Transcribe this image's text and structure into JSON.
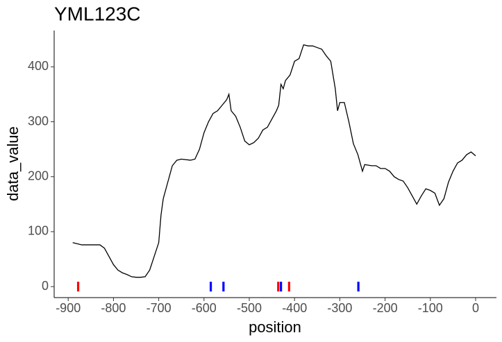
{
  "chart_data": {
    "type": "line",
    "title": "YML123C",
    "x_label": "position",
    "y_label": "data_value",
    "color": "#000000",
    "x": [
      -890,
      -870,
      -850,
      -830,
      -820,
      -810,
      -800,
      -790,
      -780,
      -770,
      -760,
      -750,
      -740,
      -730,
      -720,
      -710,
      -700,
      -695,
      -690,
      -680,
      -670,
      -660,
      -650,
      -630,
      -620,
      -610,
      -600,
      -590,
      -580,
      -570,
      -560,
      -550,
      -545,
      -540,
      -530,
      -520,
      -510,
      -500,
      -490,
      -480,
      -470,
      -460,
      -450,
      -440,
      -435,
      -430,
      -425,
      -420,
      -410,
      -400,
      -390,
      -380,
      -370,
      -360,
      -350,
      -340,
      -330,
      -320,
      -310,
      -305,
      -300,
      -290,
      -280,
      -270,
      -260,
      -250,
      -245,
      -230,
      -220,
      -210,
      -200,
      -190,
      -180,
      -170,
      -160,
      -150,
      -140,
      -130,
      -120,
      -110,
      -100,
      -90,
      -80,
      -70,
      -60,
      -50,
      -40,
      -30,
      -20,
      -10,
      0
    ],
    "values": [
      80,
      76,
      76,
      76,
      70,
      55,
      40,
      30,
      25,
      22,
      18,
      17,
      17,
      18,
      30,
      55,
      80,
      130,
      160,
      190,
      220,
      230,
      232,
      230,
      232,
      250,
      280,
      300,
      315,
      320,
      330,
      340,
      350,
      320,
      310,
      290,
      265,
      258,
      262,
      270,
      285,
      290,
      305,
      320,
      330,
      368,
      360,
      375,
      385,
      410,
      415,
      440,
      438,
      438,
      435,
      432,
      420,
      410,
      360,
      320,
      335,
      335,
      300,
      260,
      240,
      210,
      222,
      220,
      220,
      215,
      215,
      210,
      200,
      195,
      192,
      180,
      165,
      150,
      165,
      178,
      175,
      170,
      148,
      160,
      190,
      210,
      225,
      230,
      240,
      245,
      238
    ],
    "marks": [
      {
        "color": "#ff0000",
        "x": [
          -878,
          -436,
          -412
        ],
        "values": [
          0,
          0,
          0
        ]
      },
      {
        "color": "#0000ff",
        "x": [
          -585,
          -557,
          -430,
          -259
        ],
        "values": [
          0,
          0,
          0,
          0
        ]
      }
    ],
    "xlim": [
      -931,
      46
    ],
    "ylim": [
      -20,
      466
    ],
    "xticks": [
      -900,
      -800,
      -700,
      -600,
      -500,
      -400,
      -300,
      -200,
      -100,
      0
    ],
    "yticks": [
      0,
      100,
      200,
      300,
      400
    ],
    "grid": false
  }
}
